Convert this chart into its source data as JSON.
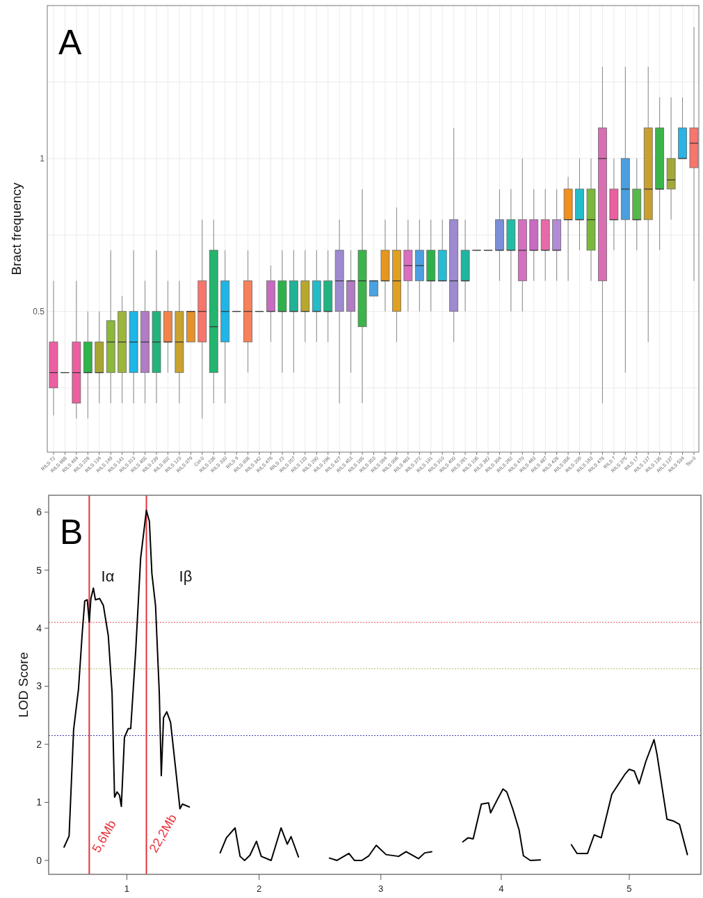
{
  "chart_data": [
    {
      "type": "box",
      "title": "A",
      "ylabel": "Bract frequency",
      "grid": true,
      "categories": [
        "RILS 72",
        "RILS 888",
        "RILS 494",
        "RILS 228",
        "RILS 134",
        "RILS 149",
        "RILS 141",
        "RILS 313",
        "RILS 455",
        "RILS 239",
        "RILS 002",
        "RILS 123",
        "RILS 079",
        "Col-0",
        "RILS 236",
        "RILS 330",
        "RILS 9",
        "RILS 008",
        "RILS 342",
        "RILS 476",
        "RILS 23",
        "RILS 257",
        "RILS 133",
        "RILS 290",
        "RILS 296",
        "RILS 427",
        "RILS 453",
        "RILS 185",
        "RILS 353",
        "RILS 094",
        "RILS 096",
        "RILS 483",
        "RILS 372",
        "RILS 191",
        "RILS 310",
        "RILS 400",
        "RILS 281",
        "RILS 106",
        "RILS 382",
        "RILS 394",
        "RILS 262",
        "RILS 470",
        "RILS 463",
        "RILS 487",
        "RILS 428",
        "RILS 056",
        "RILS 209",
        "RILS 163",
        "RILS 478",
        "RILS 7",
        "RILS 375",
        "RILS 17",
        "RILS 137",
        "RILS 135",
        "RILS 137",
        "RILS 534",
        "Tsu-0"
      ],
      "colors": [
        "#ec5fa0",
        "#ec5fa0",
        "#ec5fa0",
        "#2fb34a",
        "#a8a533",
        "#8cb83c",
        "#9cb63b",
        "#1fb5e6",
        "#b27cc4",
        "#22b47c",
        "#f2844a",
        "#c9a230",
        "#e5922a",
        "#f7756d",
        "#23b46e",
        "#1fb5e6",
        "#f7756d",
        "#f7815a",
        "#b27cc4",
        "#c86bc2",
        "#2db24a",
        "#21b296",
        "#b9a62c",
        "#23bcc8",
        "#21b482",
        "#9d8ad0",
        "#b27cc4",
        "#3cb44a",
        "#4aa3e0",
        "#e6961e",
        "#e0a020",
        "#d96fc0",
        "#4b9fe0",
        "#2db24a",
        "#26bcd6",
        "#9d8ad0",
        "#1fb5a0",
        "#e6961e",
        "#4b9fe0",
        "#7b8fd6",
        "#22bca6",
        "#d66fc0",
        "#c86bc2",
        "#e76aa8",
        "#b28ad6",
        "#f2901c",
        "#23bcc8",
        "#7ab83c",
        "#d96fb2",
        "#ec5fa0",
        "#4b9fe0",
        "#56b84a",
        "#c8a030",
        "#3cb44a",
        "#a3a83a",
        "#29b3e6",
        "#f7756d"
      ],
      "boxes": [
        {
          "low": 0.16,
          "q1": 0.25,
          "median": 0.3,
          "q3": 0.4,
          "high": 0.6
        },
        {
          "low": 0.3,
          "q1": 0.3,
          "median": 0.3,
          "q3": 0.3,
          "high": 0.3
        },
        {
          "low": 0.15,
          "q1": 0.2,
          "median": 0.3,
          "q3": 0.4,
          "high": 0.6
        },
        {
          "low": 0.15,
          "q1": 0.3,
          "median": 0.3,
          "q3": 0.4,
          "high": 0.5
        },
        {
          "low": 0.2,
          "q1": 0.3,
          "median": 0.3,
          "q3": 0.4,
          "high": 0.5
        },
        {
          "low": 0.2,
          "q1": 0.3,
          "median": 0.4,
          "q3": 0.47,
          "high": 0.7
        },
        {
          "low": 0.2,
          "q1": 0.3,
          "median": 0.4,
          "q3": 0.5,
          "high": 0.55
        },
        {
          "low": 0.2,
          "q1": 0.3,
          "median": 0.4,
          "q3": 0.5,
          "high": 0.7
        },
        {
          "low": 0.2,
          "q1": 0.3,
          "median": 0.4,
          "q3": 0.5,
          "high": 0.6
        },
        {
          "low": 0.2,
          "q1": 0.3,
          "median": 0.4,
          "q3": 0.5,
          "high": 0.7
        },
        {
          "low": 0.3,
          "q1": 0.4,
          "median": 0.4,
          "q3": 0.5,
          "high": 0.6
        },
        {
          "low": 0.2,
          "q1": 0.3,
          "median": 0.4,
          "q3": 0.5,
          "high": 0.6
        },
        {
          "low": 0.4,
          "q1": 0.4,
          "median": 0.5,
          "q3": 0.5,
          "high": 0.5
        },
        {
          "low": 0.15,
          "q1": 0.4,
          "median": 0.5,
          "q3": 0.6,
          "high": 0.8
        },
        {
          "low": 0.2,
          "q1": 0.3,
          "median": 0.45,
          "q3": 0.7,
          "high": 0.8
        },
        {
          "low": 0.2,
          "q1": 0.4,
          "median": 0.5,
          "q3": 0.6,
          "high": 0.7
        },
        {
          "low": 0.5,
          "q1": 0.5,
          "median": 0.5,
          "q3": 0.5,
          "high": 0.5
        },
        {
          "low": 0.3,
          "q1": 0.4,
          "median": 0.5,
          "q3": 0.6,
          "high": 0.7
        },
        {
          "low": 0.5,
          "q1": 0.5,
          "median": 0.5,
          "q3": 0.5,
          "high": 0.5
        },
        {
          "low": 0.4,
          "q1": 0.5,
          "median": 0.5,
          "q3": 0.6,
          "high": 0.65
        },
        {
          "low": 0.3,
          "q1": 0.5,
          "median": 0.5,
          "q3": 0.6,
          "high": 0.7
        },
        {
          "low": 0.3,
          "q1": 0.5,
          "median": 0.5,
          "q3": 0.6,
          "high": 0.7
        },
        {
          "low": 0.4,
          "q1": 0.5,
          "median": 0.5,
          "q3": 0.6,
          "high": 0.7
        },
        {
          "low": 0.4,
          "q1": 0.5,
          "median": 0.5,
          "q3": 0.6,
          "high": 0.7
        },
        {
          "low": 0.4,
          "q1": 0.5,
          "median": 0.5,
          "q3": 0.6,
          "high": 0.7
        },
        {
          "low": 0.2,
          "q1": 0.5,
          "median": 0.6,
          "q3": 0.7,
          "high": 0.8
        },
        {
          "low": 0.3,
          "q1": 0.5,
          "median": 0.6,
          "q3": 0.6,
          "high": 0.7
        },
        {
          "low": 0.2,
          "q1": 0.45,
          "median": 0.6,
          "q3": 0.7,
          "high": 0.9
        },
        {
          "low": 0.55,
          "q1": 0.55,
          "median": 0.6,
          "q3": 0.6,
          "high": 0.6
        },
        {
          "low": 0.5,
          "q1": 0.6,
          "median": 0.6,
          "q3": 0.7,
          "high": 0.8
        },
        {
          "low": 0.4,
          "q1": 0.5,
          "median": 0.6,
          "q3": 0.7,
          "high": 0.84
        },
        {
          "low": 0.5,
          "q1": 0.6,
          "median": 0.65,
          "q3": 0.7,
          "high": 0.8
        },
        {
          "low": 0.5,
          "q1": 0.6,
          "median": 0.65,
          "q3": 0.7,
          "high": 0.8
        },
        {
          "low": 0.5,
          "q1": 0.6,
          "median": 0.6,
          "q3": 0.7,
          "high": 0.8
        },
        {
          "low": 0.6,
          "q1": 0.6,
          "median": 0.6,
          "q3": 0.7,
          "high": 0.8
        },
        {
          "low": 0.4,
          "q1": 0.5,
          "median": 0.6,
          "q3": 0.8,
          "high": 1.1
        },
        {
          "low": 0.5,
          "q1": 0.6,
          "median": 0.6,
          "q3": 0.7,
          "high": 0.8
        },
        {
          "low": 0.7,
          "q1": 0.7,
          "median": 0.7,
          "q3": 0.7,
          "high": 0.7
        },
        {
          "low": 0.7,
          "q1": 0.7,
          "median": 0.7,
          "q3": 0.7,
          "high": 0.7
        },
        {
          "low": 0.6,
          "q1": 0.7,
          "median": 0.7,
          "q3": 0.8,
          "high": 0.9
        },
        {
          "low": 0.5,
          "q1": 0.7,
          "median": 0.7,
          "q3": 0.8,
          "high": 0.9
        },
        {
          "low": 0.5,
          "q1": 0.6,
          "median": 0.7,
          "q3": 0.8,
          "high": 1.0
        },
        {
          "low": 0.6,
          "q1": 0.7,
          "median": 0.7,
          "q3": 0.8,
          "high": 0.9
        },
        {
          "low": 0.6,
          "q1": 0.7,
          "median": 0.7,
          "q3": 0.8,
          "high": 0.9
        },
        {
          "low": 0.6,
          "q1": 0.7,
          "median": 0.7,
          "q3": 0.8,
          "high": 0.9
        },
        {
          "low": 0.6,
          "q1": 0.8,
          "median": 0.8,
          "q3": 0.9,
          "high": 0.94
        },
        {
          "low": 0.7,
          "q1": 0.8,
          "median": 0.8,
          "q3": 0.9,
          "high": 1.0
        },
        {
          "low": 0.6,
          "q1": 0.7,
          "median": 0.8,
          "q3": 0.9,
          "high": 1.0
        },
        {
          "low": 0.2,
          "q1": 0.6,
          "median": 1.0,
          "q3": 1.1,
          "high": 1.3
        },
        {
          "low": 0.7,
          "q1": 0.8,
          "median": 0.8,
          "q3": 0.9,
          "high": 1.0
        },
        {
          "low": 0.3,
          "q1": 0.8,
          "median": 0.9,
          "q3": 1.0,
          "high": 1.3
        },
        {
          "low": 0.7,
          "q1": 0.8,
          "median": 0.8,
          "q3": 0.9,
          "high": 1.0
        },
        {
          "low": 0.4,
          "q1": 0.8,
          "median": 0.9,
          "q3": 1.1,
          "high": 1.3
        },
        {
          "low": 0.7,
          "q1": 0.9,
          "median": 0.9,
          "q3": 1.1,
          "high": 1.2
        },
        {
          "low": 0.8,
          "q1": 0.9,
          "median": 0.93,
          "q3": 1.0,
          "high": 1.2
        },
        {
          "low": 1.0,
          "q1": 1.0,
          "median": 1.0,
          "q3": 1.1,
          "high": 1.2
        },
        {
          "low": 0.6,
          "q1": 0.97,
          "median": 1.05,
          "q3": 1.1,
          "high": 1.43
        }
      ],
      "ylim": [
        0.04,
        1.5
      ],
      "yticks": [
        {
          "value": 0.25,
          "label": null
        },
        0.5,
        {
          "value": 0.75,
          "label": null
        },
        1,
        {
          "value": 1.25,
          "label": null
        }
      ]
    },
    {
      "type": "line",
      "title": "B",
      "ylabel": "LOD Score",
      "line_style": "solid",
      "series": [
        {
          "color": "#000000",
          "x": [
            0.499,
            0.539,
            0.575,
            0.614,
            0.644,
            0.664,
            0.684,
            0.7,
            0.713,
            0.733,
            0.749,
            0.783,
            0.813,
            0.852,
            0.882,
            0.902,
            0.922,
            0.942,
            0.956,
            0.981,
            1.011,
            1.031,
            1.071,
            1.11,
            1.156,
            1.18,
            1.2,
            1.229,
            1.259,
            1.275,
            1.293,
            1.319,
            1.349,
            1.388,
            1.424,
            1.444,
            1.499
          ],
          "values": [
            0.23,
            0.42,
            2.25,
            2.95,
            3.92,
            4.47,
            4.49,
            4.11,
            4.51,
            4.69,
            4.49,
            4.51,
            4.39,
            3.87,
            2.89,
            1.09,
            1.18,
            1.12,
            0.93,
            2.12,
            2.27,
            2.27,
            3.62,
            5.2,
            6.03,
            5.84,
            4.94,
            4.39,
            2.89,
            1.46,
            2.46,
            2.56,
            2.38,
            1.61,
            0.89,
            0.97,
            0.92
          ]
        },
        {
          "color": "#000000",
          "x": [
            1.745,
            1.795,
            1.864,
            1.904,
            1.94,
            1.983,
            2.035,
            2.073,
            2.152,
            2.231,
            2.281,
            2.311,
            2.37
          ],
          "values": [
            0.13,
            0.39,
            0.56,
            0.07,
            0.0,
            0.09,
            0.33,
            0.07,
            0.0,
            0.56,
            0.28,
            0.41,
            0.06
          ]
        },
        {
          "color": "#000000",
          "x": [
            2.618,
            2.678,
            2.773,
            2.817,
            2.876,
            2.932,
            2.991,
            3.07,
            3.17,
            3.229,
            3.328,
            3.378,
            3.434
          ],
          "values": [
            0.04,
            0.0,
            0.12,
            0.0,
            0.0,
            0.08,
            0.26,
            0.1,
            0.07,
            0.15,
            0.03,
            0.13,
            0.15
          ]
        },
        {
          "color": "#000000",
          "x": [
            3.682,
            3.725,
            3.765,
            3.83,
            3.888,
            3.904,
            3.963,
            4.003,
            4.033,
            4.082,
            4.132,
            4.166,
            4.221,
            4.301
          ],
          "values": [
            0.32,
            0.39,
            0.37,
            0.97,
            0.99,
            0.82,
            1.07,
            1.23,
            1.18,
            0.88,
            0.52,
            0.08,
            0.0,
            0.01
          ]
        },
        {
          "color": "#000000",
          "x": [
            4.549,
            4.594,
            4.678,
            4.731,
            4.787,
            4.872,
            4.975,
            5.011,
            5.051,
            5.09,
            5.144,
            5.209,
            5.233,
            5.312,
            5.362,
            5.412,
            5.475
          ],
          "values": [
            0.27,
            0.12,
            0.12,
            0.44,
            0.39,
            1.14,
            1.48,
            1.57,
            1.54,
            1.32,
            1.71,
            2.08,
            1.82,
            0.71,
            0.68,
            0.62,
            0.1
          ]
        }
      ],
      "xlim": [
        0.376,
        5.583
      ],
      "xticks": [
        1,
        {
          "value": 2.056,
          "label": "2"
        },
        {
          "value": 3.028,
          "label": "3"
        },
        {
          "value": 3.989,
          "label": "4"
        },
        {
          "value": 5.011,
          "label": "5"
        }
      ],
      "ylim": [
        -0.24,
        6.29
      ],
      "yticks": [
        0,
        1,
        2,
        3,
        4,
        5,
        6
      ],
      "ref_lines": [
        {
          "axis": "y",
          "value": 4.1,
          "color": "#e8474a",
          "line_style": "dotted"
        },
        {
          "axis": "y",
          "value": 3.3,
          "color": "#a8c060",
          "line_style": "dotted"
        },
        {
          "axis": "y",
          "value": 2.15,
          "color": "#3a3ab8",
          "line_style": "dotted"
        },
        {
          "axis": "x",
          "value": 0.7,
          "label": "5,6Mb",
          "color": "#e8303a",
          "line_style": "solid"
        },
        {
          "axis": "x",
          "value": 1.156,
          "label": "22,2Mb",
          "color": "#e8303a",
          "line_style": "solid"
        }
      ],
      "annotations": [
        "Iα",
        "Iβ"
      ]
    }
  ]
}
